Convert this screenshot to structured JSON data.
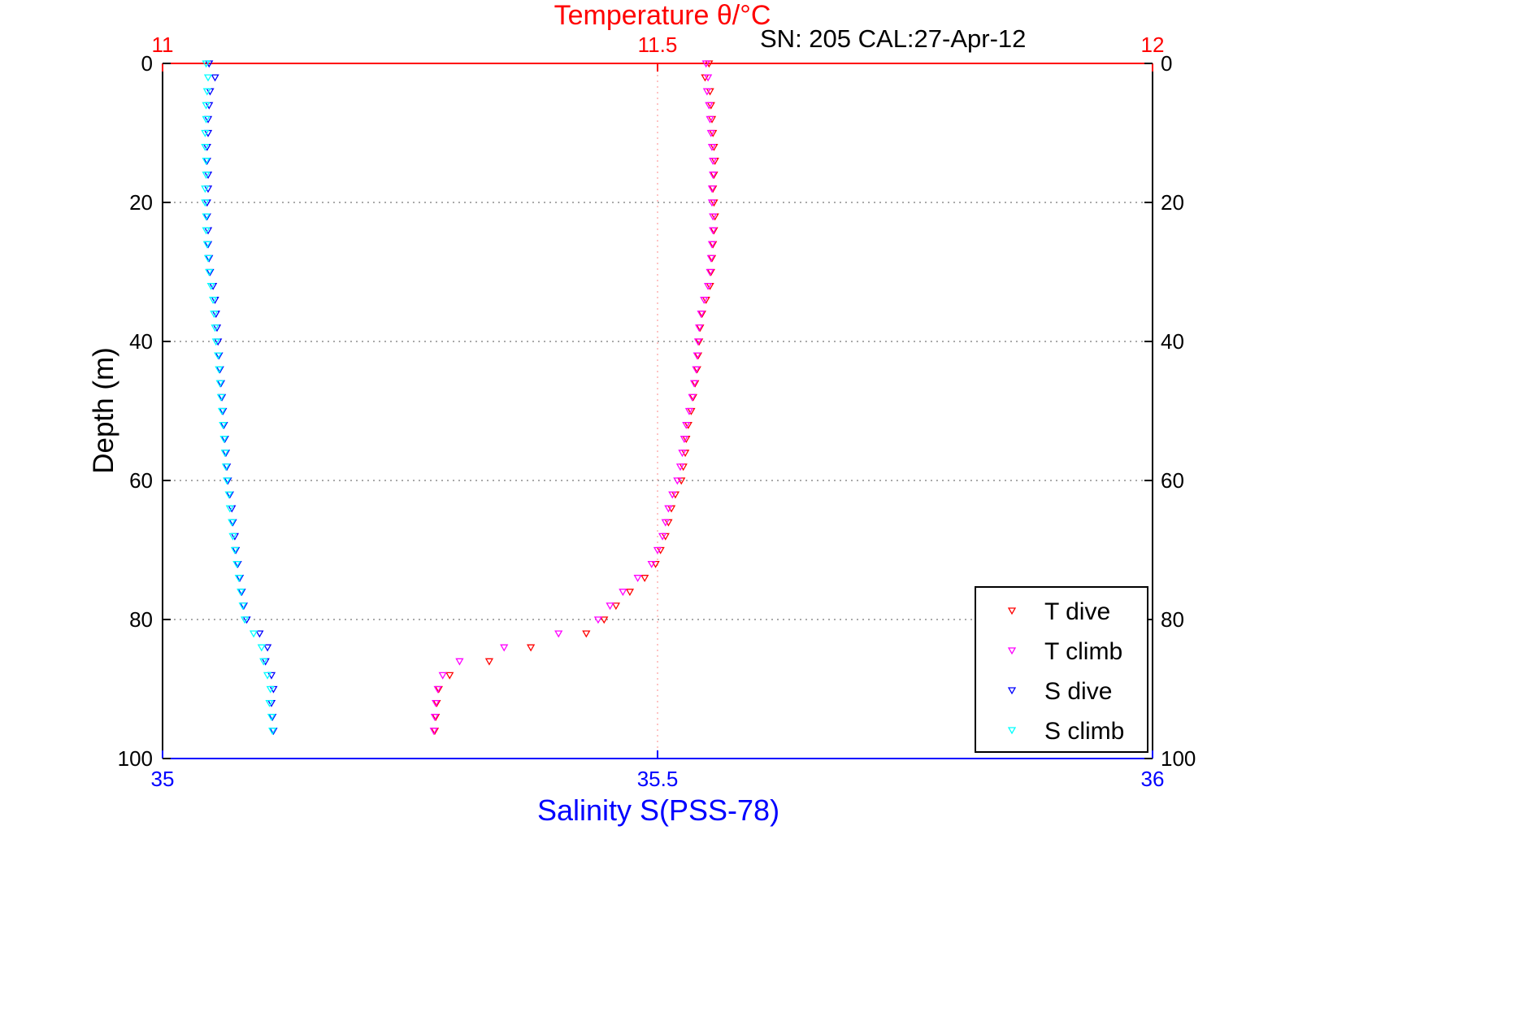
{
  "figure": {
    "title": "Temperature θ/°C",
    "annotation": "SN: 205  CAL:27-Apr-12",
    "depth_axis_label": "Depth (m)",
    "salinity_axis_label": "Salinity S(PSS-78)",
    "title_color": "#ff0000",
    "salinity_color": "#0000ff",
    "depth_color": "#000000"
  },
  "chart_data": {
    "type": "scatter",
    "marker": "triangle-down",
    "title": "Temperature θ/°C",
    "annotation": "SN: 205  CAL:27-Apr-12",
    "axes": {
      "temperature": {
        "side": "top",
        "label": "Temperature θ/°C",
        "range": [
          11,
          12
        ],
        "ticks": [
          11,
          11.5,
          12
        ],
        "tick_labels": [
          "11",
          "11.5",
          "12"
        ],
        "color": "#ff0000",
        "grid_at": [
          11.5
        ]
      },
      "salinity": {
        "side": "bottom",
        "label": "Salinity S(PSS-78)",
        "range": [
          35,
          36
        ],
        "ticks": [
          35,
          35.5,
          36
        ],
        "tick_labels": [
          "35",
          "35.5",
          "36"
        ],
        "color": "#0000ff",
        "grid_at": []
      },
      "depth": {
        "side": "left-right",
        "label": "Depth (m)",
        "range": [
          0,
          100
        ],
        "ticks": [
          0,
          20,
          40,
          60,
          80,
          100
        ],
        "tick_labels": [
          "0",
          "20",
          "40",
          "60",
          "80",
          "100"
        ],
        "color": "#000000",
        "grid_at": [
          20,
          40,
          60,
          80
        ],
        "direction": "down"
      }
    },
    "legend": {
      "position": "lower-right",
      "entries": [
        {
          "label": "T dive",
          "color": "#ff0000"
        },
        {
          "label": "T climb",
          "color": "#ff00ff"
        },
        {
          "label": "S dive",
          "color": "#0000ff"
        },
        {
          "label": "S climb",
          "color": "#00ffff"
        }
      ]
    },
    "series": [
      {
        "name": "T dive",
        "color": "#ff0000",
        "axis": "temperature",
        "points": [
          [
            0,
            11.552
          ],
          [
            2,
            11.548
          ],
          [
            4,
            11.553
          ],
          [
            6,
            11.554
          ],
          [
            8,
            11.555
          ],
          [
            10,
            11.556
          ],
          [
            12,
            11.557
          ],
          [
            14,
            11.558
          ],
          [
            16,
            11.557
          ],
          [
            18,
            11.556
          ],
          [
            20,
            11.557
          ],
          [
            22,
            11.558
          ],
          [
            24,
            11.557
          ],
          [
            26,
            11.556
          ],
          [
            28,
            11.555
          ],
          [
            30,
            11.554
          ],
          [
            32,
            11.553
          ],
          [
            34,
            11.549
          ],
          [
            36,
            11.545
          ],
          [
            38,
            11.543
          ],
          [
            40,
            11.542
          ],
          [
            42,
            11.541
          ],
          [
            44,
            11.54
          ],
          [
            46,
            11.538
          ],
          [
            48,
            11.536
          ],
          [
            50,
            11.534
          ],
          [
            52,
            11.531
          ],
          [
            54,
            11.529
          ],
          [
            56,
            11.528
          ],
          [
            58,
            11.526
          ],
          [
            60,
            11.524
          ],
          [
            62,
            11.518
          ],
          [
            64,
            11.514
          ],
          [
            66,
            11.511
          ],
          [
            68,
            11.508
          ],
          [
            70,
            11.503
          ],
          [
            72,
            11.498
          ],
          [
            74,
            11.487
          ],
          [
            76,
            11.472
          ],
          [
            78,
            11.458
          ],
          [
            80,
            11.446
          ],
          [
            82,
            11.428
          ],
          [
            84,
            11.372
          ],
          [
            86,
            11.33
          ],
          [
            88,
            11.29
          ],
          [
            90,
            11.279
          ],
          [
            92,
            11.277
          ],
          [
            94,
            11.276
          ],
          [
            96,
            11.275
          ]
        ]
      },
      {
        "name": "T climb",
        "color": "#ff00ff",
        "axis": "temperature",
        "points": [
          [
            0,
            11.549
          ],
          [
            2,
            11.551
          ],
          [
            4,
            11.55
          ],
          [
            6,
            11.552
          ],
          [
            8,
            11.553
          ],
          [
            10,
            11.554
          ],
          [
            12,
            11.555
          ],
          [
            14,
            11.556
          ],
          [
            16,
            11.556
          ],
          [
            18,
            11.555
          ],
          [
            20,
            11.555
          ],
          [
            22,
            11.556
          ],
          [
            24,
            11.556
          ],
          [
            26,
            11.555
          ],
          [
            28,
            11.554
          ],
          [
            30,
            11.553
          ],
          [
            32,
            11.551
          ],
          [
            34,
            11.547
          ],
          [
            36,
            11.544
          ],
          [
            38,
            11.542
          ],
          [
            40,
            11.541
          ],
          [
            42,
            11.54
          ],
          [
            44,
            11.539
          ],
          [
            46,
            11.537
          ],
          [
            48,
            11.535
          ],
          [
            50,
            11.532
          ],
          [
            52,
            11.529
          ],
          [
            54,
            11.527
          ],
          [
            56,
            11.525
          ],
          [
            58,
            11.523
          ],
          [
            60,
            11.52
          ],
          [
            62,
            11.515
          ],
          [
            64,
            11.511
          ],
          [
            66,
            11.508
          ],
          [
            68,
            11.505
          ],
          [
            70,
            11.5
          ],
          [
            72,
            11.494
          ],
          [
            74,
            11.48
          ],
          [
            76,
            11.465
          ],
          [
            78,
            11.452
          ],
          [
            80,
            11.44
          ],
          [
            82,
            11.4
          ],
          [
            84,
            11.345
          ],
          [
            86,
            11.3
          ],
          [
            88,
            11.283
          ],
          [
            90,
            11.278
          ],
          [
            92,
            11.276
          ],
          [
            94,
            11.275
          ],
          [
            96,
            11.274
          ]
        ]
      },
      {
        "name": "S dive",
        "color": "#0000ff",
        "axis": "salinity",
        "points": [
          [
            0,
            35.047
          ],
          [
            2,
            35.053
          ],
          [
            4,
            35.048
          ],
          [
            6,
            35.047
          ],
          [
            8,
            35.046
          ],
          [
            10,
            35.046
          ],
          [
            12,
            35.045
          ],
          [
            14,
            35.045
          ],
          [
            16,
            35.046
          ],
          [
            18,
            35.046
          ],
          [
            20,
            35.045
          ],
          [
            22,
            35.045
          ],
          [
            24,
            35.046
          ],
          [
            26,
            35.046
          ],
          [
            28,
            35.047
          ],
          [
            30,
            35.048
          ],
          [
            32,
            35.051
          ],
          [
            34,
            35.053
          ],
          [
            36,
            35.054
          ],
          [
            38,
            35.055
          ],
          [
            40,
            35.056
          ],
          [
            42,
            35.057
          ],
          [
            44,
            35.058
          ],
          [
            46,
            35.059
          ],
          [
            48,
            35.06
          ],
          [
            50,
            35.061
          ],
          [
            52,
            35.062
          ],
          [
            54,
            35.063
          ],
          [
            56,
            35.064
          ],
          [
            58,
            35.065
          ],
          [
            60,
            35.066
          ],
          [
            62,
            35.068
          ],
          [
            64,
            35.07
          ],
          [
            66,
            35.071
          ],
          [
            68,
            35.073
          ],
          [
            70,
            35.074
          ],
          [
            72,
            35.076
          ],
          [
            74,
            35.078
          ],
          [
            76,
            35.08
          ],
          [
            78,
            35.082
          ],
          [
            80,
            35.085
          ],
          [
            82,
            35.098
          ],
          [
            84,
            35.106
          ],
          [
            86,
            35.104
          ],
          [
            88,
            35.11
          ],
          [
            90,
            35.112
          ],
          [
            92,
            35.11
          ],
          [
            94,
            35.111
          ],
          [
            96,
            35.112
          ]
        ]
      },
      {
        "name": "S climb",
        "color": "#00ffff",
        "axis": "salinity",
        "points": [
          [
            0,
            35.044
          ],
          [
            2,
            35.046
          ],
          [
            4,
            35.045
          ],
          [
            6,
            35.044
          ],
          [
            8,
            35.044
          ],
          [
            10,
            35.043
          ],
          [
            12,
            35.043
          ],
          [
            14,
            35.044
          ],
          [
            16,
            35.044
          ],
          [
            18,
            35.043
          ],
          [
            20,
            35.043
          ],
          [
            22,
            35.044
          ],
          [
            24,
            35.044
          ],
          [
            26,
            35.045
          ],
          [
            28,
            35.046
          ],
          [
            30,
            35.047
          ],
          [
            32,
            35.049
          ],
          [
            34,
            35.051
          ],
          [
            36,
            35.052
          ],
          [
            38,
            35.053
          ],
          [
            40,
            35.054
          ],
          [
            42,
            35.056
          ],
          [
            44,
            35.057
          ],
          [
            46,
            35.058
          ],
          [
            48,
            35.059
          ],
          [
            50,
            35.06
          ],
          [
            52,
            35.061
          ],
          [
            54,
            35.062
          ],
          [
            56,
            35.063
          ],
          [
            58,
            35.064
          ],
          [
            60,
            35.065
          ],
          [
            62,
            35.067
          ],
          [
            64,
            35.068
          ],
          [
            66,
            35.07
          ],
          [
            68,
            35.071
          ],
          [
            70,
            35.073
          ],
          [
            72,
            35.075
          ],
          [
            74,
            35.077
          ],
          [
            76,
            35.079
          ],
          [
            78,
            35.081
          ],
          [
            80,
            35.083
          ],
          [
            82,
            35.092
          ],
          [
            84,
            35.1
          ],
          [
            86,
            35.102
          ],
          [
            88,
            35.106
          ],
          [
            90,
            35.109
          ],
          [
            92,
            35.108
          ],
          [
            94,
            35.11
          ],
          [
            96,
            35.111
          ]
        ]
      }
    ]
  }
}
